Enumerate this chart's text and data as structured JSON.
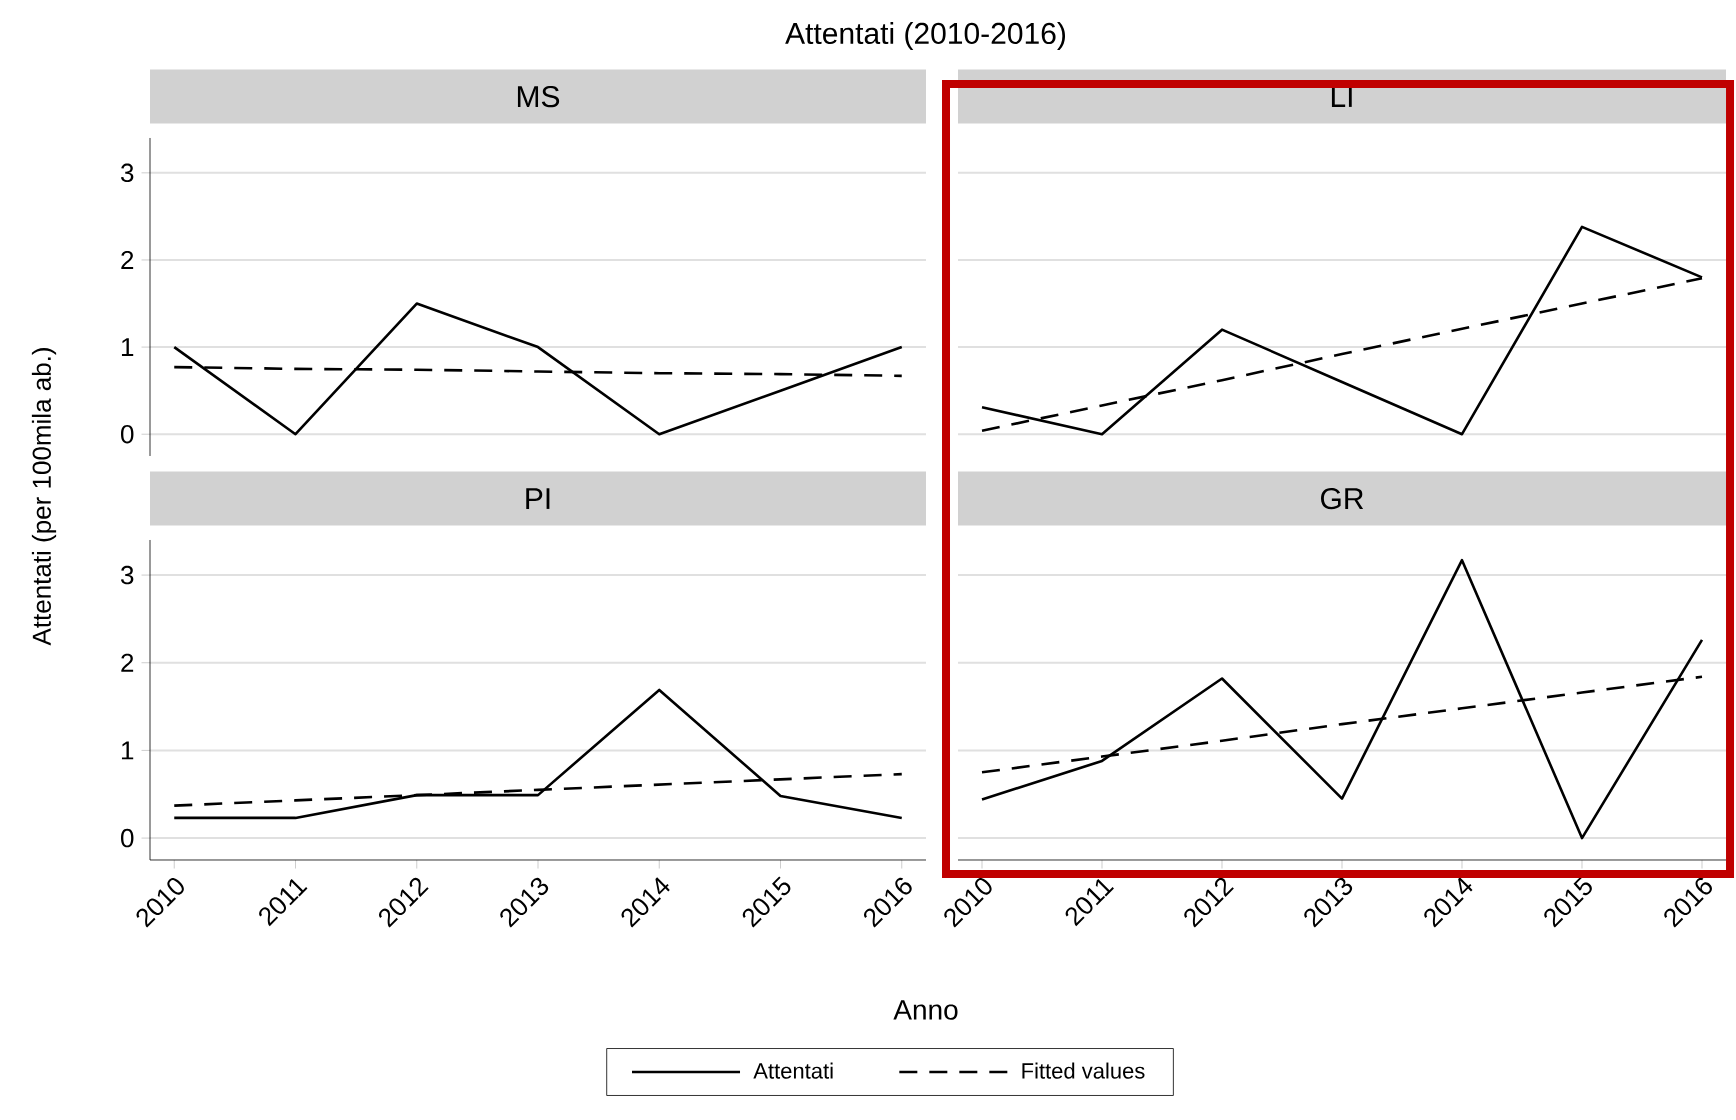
{
  "chart_data": [
    {
      "type": "line",
      "title": "MS",
      "annotations": [
        "Attentati (2010-2016)"
      ],
      "ylabel": "Attentati (per 100mila ab.)",
      "x": [
        2010,
        2011,
        2012,
        2013,
        2014,
        2015,
        2016
      ],
      "xlim": [
        2009.8,
        2016.2
      ],
      "ylim": [
        -0.25,
        3.4
      ],
      "yticks": [
        0,
        1,
        2,
        3
      ],
      "grid": "y",
      "tick_labels": "y",
      "series": [
        {
          "color": "#000000",
          "line_style": "solid",
          "values": [
            1,
            0,
            1.5,
            1,
            0,
            0.5,
            1
          ]
        },
        {
          "color": "#000000",
          "line_style": "dashed",
          "values": [
            0.77,
            0.75,
            0.74,
            0.72,
            0.7,
            0.69,
            0.67
          ]
        }
      ]
    },
    {
      "type": "line",
      "title": "LI",
      "x": [
        2010,
        2011,
        2012,
        2013,
        2014,
        2015,
        2016
      ],
      "xlim": [
        2009.8,
        2016.2
      ],
      "yticks": [
        0,
        1,
        2,
        3
      ],
      "grid": "y",
      "tick_labels": false,
      "series": [
        {
          "color": "#000000",
          "line_style": "solid",
          "values": [
            0.31,
            0,
            1.2,
            0.6,
            0,
            2.38,
            1.8
          ]
        },
        {
          "color": "#000000",
          "line_style": "dashed",
          "values": [
            0.04,
            0.33,
            0.62,
            0.92,
            1.21,
            1.5,
            1.79
          ]
        }
      ]
    },
    {
      "type": "line",
      "title": "PI",
      "xlabel": "Anno",
      "x": [
        2010,
        2011,
        2012,
        2013,
        2014,
        2015,
        2016
      ],
      "xlim": [
        2009.8,
        2016.2
      ],
      "xticks": [
        2010,
        2011,
        2012,
        2013,
        2014,
        2015,
        2016
      ],
      "ylim": [
        -0.25,
        3.4
      ],
      "yticks": [
        0,
        1,
        2,
        3
      ],
      "grid": "y",
      "series": [
        {
          "color": "#000000",
          "line_style": "solid",
          "values": [
            0.23,
            0.23,
            0.49,
            0.49,
            1.69,
            0.48,
            0.23
          ]
        },
        {
          "color": "#000000",
          "line_style": "dashed",
          "values": [
            0.37,
            0.43,
            0.49,
            0.55,
            0.61,
            0.67,
            0.73
          ]
        }
      ]
    },
    {
      "type": "line",
      "title": "GR",
      "x": [
        2010,
        2011,
        2012,
        2013,
        2014,
        2015,
        2016
      ],
      "xlim": [
        2009.8,
        2016.2
      ],
      "xticks": [
        2010,
        2011,
        2012,
        2013,
        2014,
        2015,
        2016
      ],
      "yticks": [
        0,
        1,
        2,
        3
      ],
      "grid": "y",
      "tick_labels": "x",
      "legend": "bottom",
      "series": [
        {
          "name": "Attentati",
          "color": "#000000",
          "line_style": "solid",
          "values": [
            0.44,
            0.88,
            1.82,
            0.45,
            3.17,
            0,
            2.26
          ]
        },
        {
          "name": "Fitted values",
          "color": "#000000",
          "line_style": "dashed",
          "values": [
            0.75,
            0.93,
            1.11,
            1.3,
            1.48,
            1.66,
            1.84
          ]
        }
      ]
    }
  ]
}
